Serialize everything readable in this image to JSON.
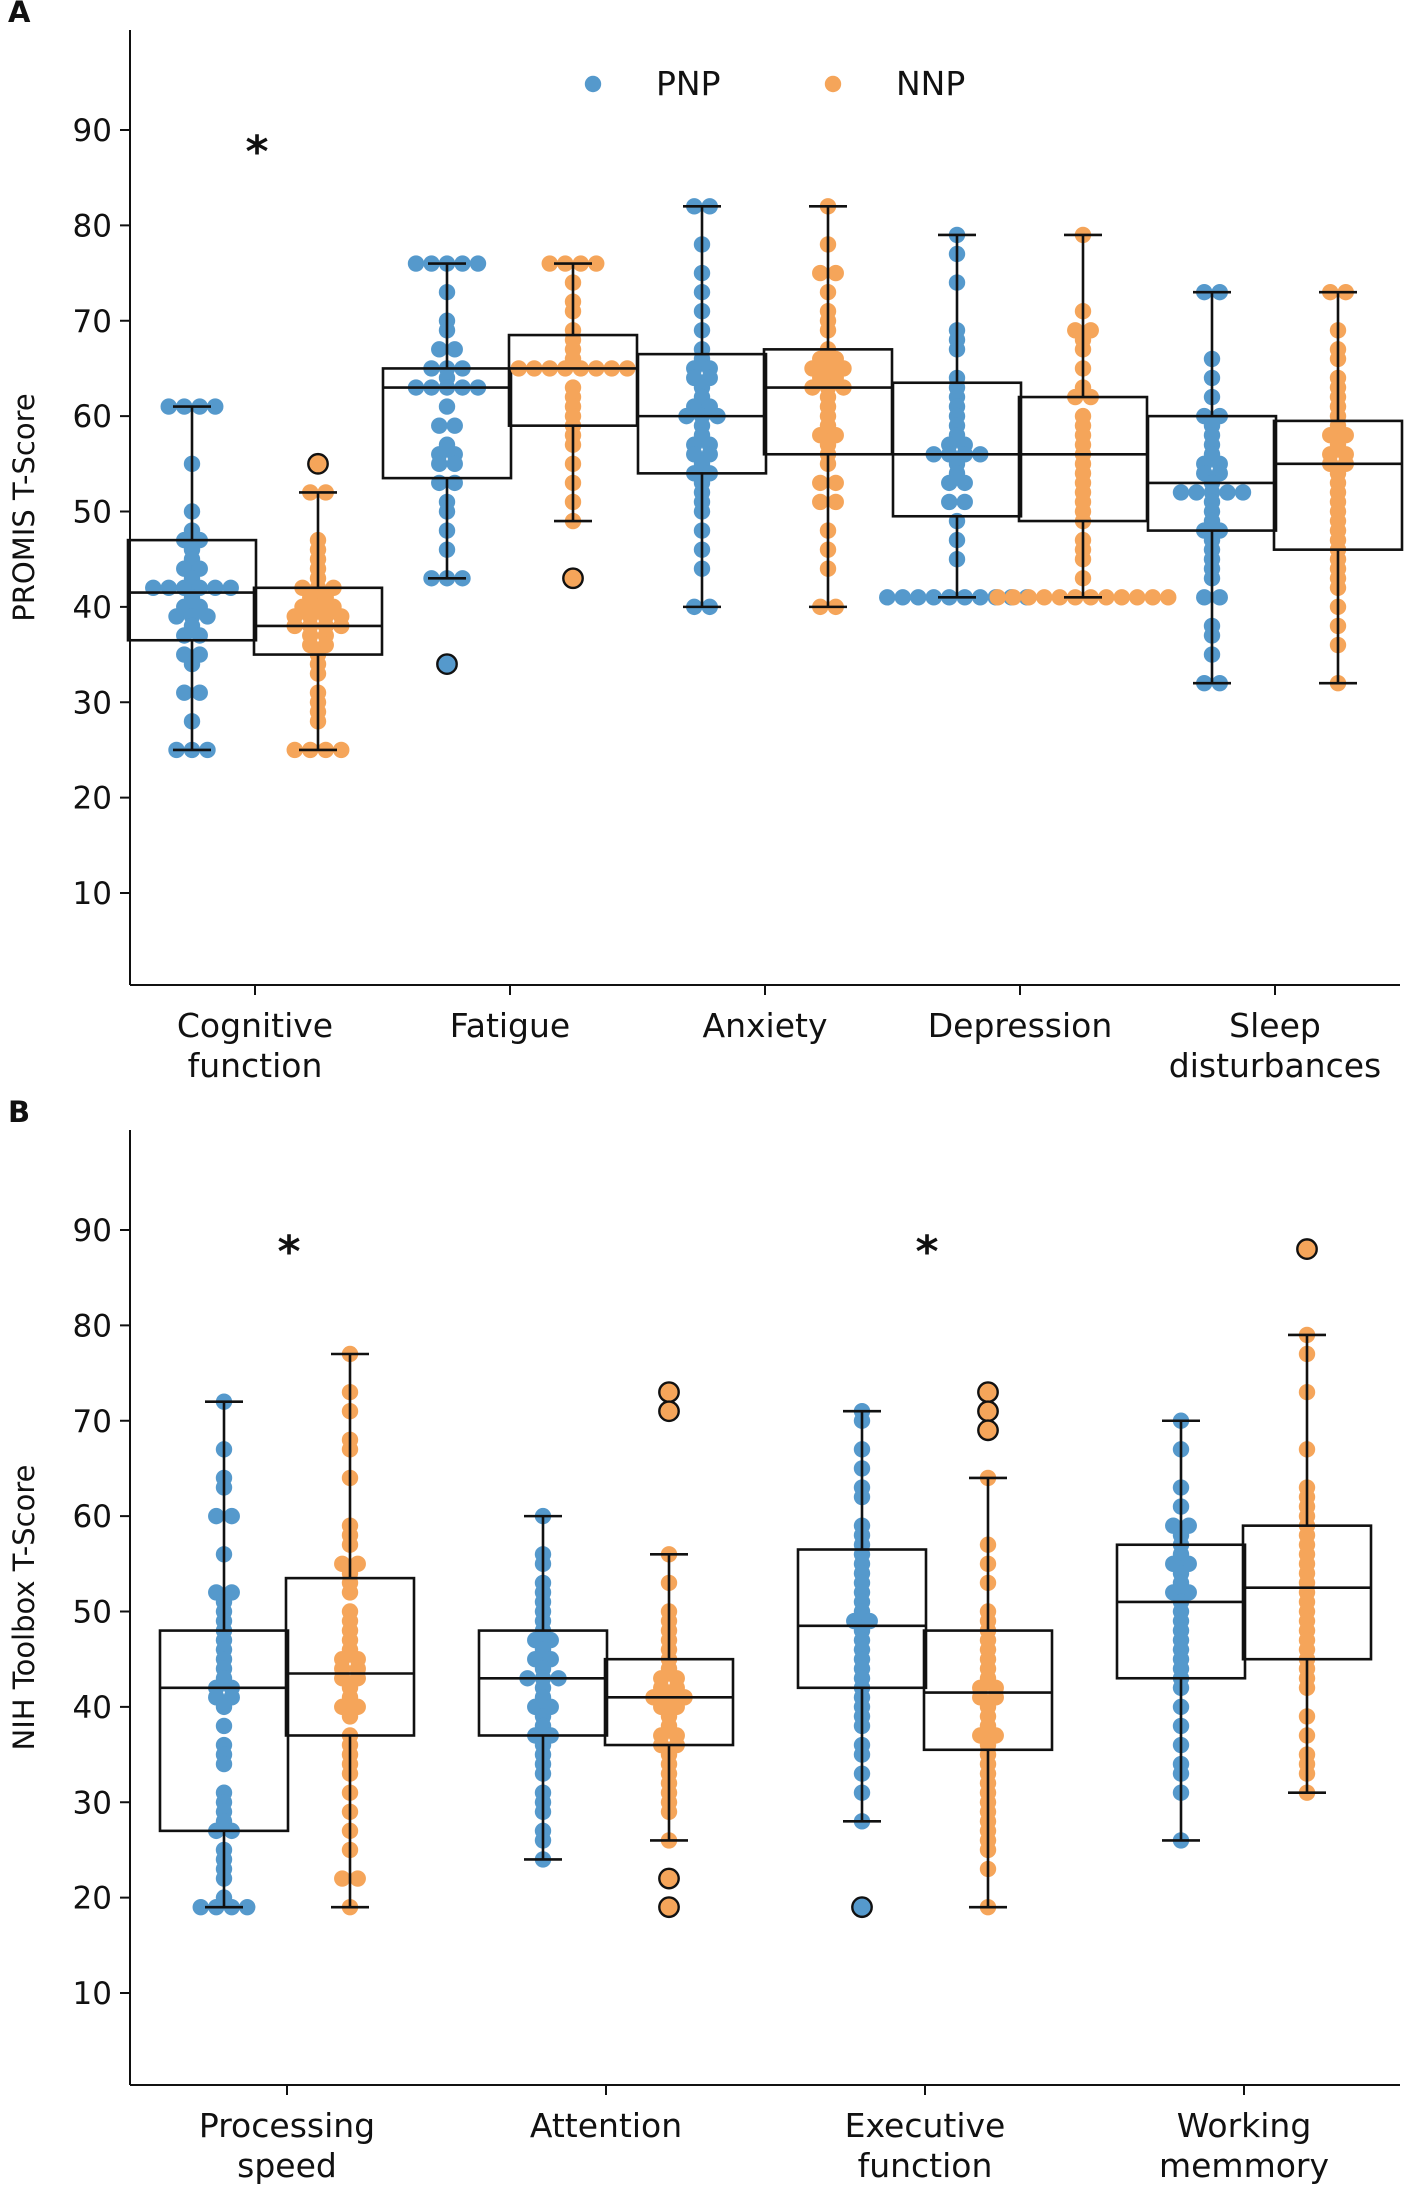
{
  "colors": {
    "PNP": "#5599cc",
    "NNP": "#f5a55a",
    "axis": "#111111"
  },
  "chart_data": [
    {
      "panel": "A",
      "type": "box",
      "ylabel": "PROMIS T-Score",
      "ylim": [
        0,
        100
      ],
      "yticks": [
        10,
        20,
        30,
        40,
        50,
        60,
        70,
        80,
        90
      ],
      "legend": {
        "placement": "top-center",
        "entries": [
          {
            "name": "PNP",
            "color_key": "PNP"
          },
          {
            "name": "NNP",
            "color_key": "NNP"
          }
        ]
      },
      "categories": [
        {
          "label": [
            "Cognitive",
            "function"
          ],
          "sig": "*",
          "groups": {
            "PNP": {
              "q1": 36.5,
              "median": 41.5,
              "q3": 47,
              "whislo": 25,
              "whishi": 61,
              "outliers": [],
              "points": [
                61,
                61,
                61,
                61,
                55,
                50,
                48,
                47,
                47,
                46,
                45,
                44,
                44,
                43,
                42,
                42,
                42,
                42,
                42,
                42,
                41,
                40,
                40,
                39,
                39,
                39,
                38,
                37,
                37,
                35,
                35,
                34,
                31,
                31,
                28,
                25,
                25,
                25
              ]
            },
            "NNP": {
              "q1": 35,
              "median": 38,
              "q3": 42,
              "whislo": 25,
              "whishi": 52,
              "outliers": [
                55
              ],
              "points": [
                52,
                52,
                47,
                46,
                45,
                44,
                43,
                42,
                42,
                42,
                41,
                41,
                40,
                40,
                40,
                39,
                39,
                39,
                39,
                38,
                38,
                38,
                38,
                37,
                37,
                36,
                36,
                35,
                34,
                33,
                31,
                30,
                29,
                28,
                25,
                25,
                25,
                25
              ]
            }
          }
        },
        {
          "label": [
            "Fatigue"
          ],
          "sig": "",
          "groups": {
            "PNP": {
              "q1": 53.5,
              "median": 63,
              "q3": 65,
              "whislo": 43,
              "whishi": 76,
              "outliers": [
                34
              ],
              "points": [
                76,
                76,
                76,
                76,
                76,
                73,
                70,
                69,
                67,
                67,
                65,
                65,
                65,
                64,
                63,
                63,
                63,
                63,
                63,
                61,
                59,
                59,
                57,
                56,
                56,
                55,
                55,
                53,
                53,
                51,
                50,
                48,
                46,
                43,
                43,
                43
              ]
            },
            "NNP": {
              "q1": 59,
              "median": 65,
              "q3": 68.5,
              "whislo": 49,
              "whishi": 76,
              "outliers": [
                43
              ],
              "points": [
                76,
                76,
                76,
                76,
                74,
                72,
                71,
                69,
                68,
                67,
                66,
                65,
                65,
                65,
                65,
                65,
                65,
                65,
                65,
                63,
                62,
                61,
                60,
                59,
                58,
                57,
                55,
                53,
                51,
                49
              ]
            }
          }
        },
        {
          "label": [
            "Anxiety"
          ],
          "sig": "",
          "groups": {
            "PNP": {
              "q1": 54,
              "median": 60,
              "q3": 66.5,
              "whislo": 40,
              "whishi": 82,
              "outliers": [],
              "points": [
                82,
                82,
                78,
                75,
                73,
                71,
                69,
                67,
                66,
                65,
                65,
                64,
                64,
                63,
                62,
                61,
                61,
                60,
                60,
                60,
                59,
                58,
                57,
                57,
                56,
                56,
                55,
                54,
                54,
                53,
                52,
                51,
                50,
                48,
                46,
                44,
                40,
                40
              ]
            },
            "NNP": {
              "q1": 56,
              "median": 63,
              "q3": 67,
              "whislo": 40,
              "whishi": 82,
              "outliers": [],
              "points": [
                82,
                78,
                75,
                75,
                73,
                71,
                70,
                69,
                67,
                66,
                66,
                65,
                65,
                65,
                64,
                64,
                63,
                63,
                63,
                62,
                61,
                60,
                59,
                58,
                58,
                57,
                56,
                55,
                53,
                53,
                51,
                51,
                48,
                46,
                44,
                40,
                40
              ]
            }
          }
        },
        {
          "label": [
            "Depression"
          ],
          "sig": "",
          "groups": {
            "PNP": {
              "q1": 49.5,
              "median": 56,
              "q3": 63.5,
              "whislo": 41,
              "whishi": 79,
              "outliers": [],
              "points": [
                79,
                77,
                74,
                69,
                68,
                67,
                64,
                63,
                62,
                61,
                60,
                59,
                58,
                57,
                57,
                56,
                56,
                56,
                56,
                55,
                54,
                53,
                53,
                51,
                51,
                49,
                47,
                45,
                41,
                41,
                41,
                41,
                41,
                41,
                41,
                41,
                41,
                41
              ]
            },
            "NNP": {
              "q1": 49,
              "median": 56,
              "q3": 62,
              "whislo": 41,
              "whishi": 79,
              "outliers": [],
              "points": [
                79,
                71,
                69,
                69,
                68,
                67,
                65,
                63,
                62,
                62,
                60,
                59,
                58,
                57,
                56,
                55,
                54,
                53,
                52,
                51,
                50,
                49,
                47,
                46,
                45,
                43,
                41,
                41,
                41,
                41,
                41,
                41,
                41,
                41,
                41,
                41,
                41,
                41
              ]
            }
          }
        },
        {
          "label": [
            "Sleep",
            "disturbances"
          ],
          "sig": "",
          "groups": {
            "PNP": {
              "q1": 48,
              "median": 53,
              "q3": 60,
              "whislo": 32,
              "whishi": 73,
              "outliers": [],
              "points": [
                73,
                73,
                66,
                64,
                62,
                60,
                60,
                59,
                58,
                57,
                56,
                55,
                55,
                54,
                54,
                53,
                52,
                52,
                52,
                52,
                52,
                51,
                50,
                49,
                48,
                48,
                47,
                46,
                45,
                44,
                43,
                41,
                41,
                38,
                37,
                35,
                32,
                32
              ]
            },
            "NNP": {
              "q1": 46,
              "median": 55,
              "q3": 59.5,
              "whislo": 32,
              "whishi": 73,
              "outliers": [],
              "points": [
                73,
                73,
                69,
                67,
                66,
                64,
                63,
                62,
                61,
                60,
                59,
                58,
                58,
                57,
                56,
                56,
                55,
                55,
                54,
                53,
                52,
                51,
                50,
                49,
                48,
                47,
                46,
                45,
                44,
                43,
                42,
                40,
                38,
                36,
                32
              ]
            }
          }
        }
      ]
    },
    {
      "panel": "B",
      "type": "box",
      "ylabel": "NIH Toolbox T-Score",
      "ylim": [
        0,
        100
      ],
      "yticks": [
        10,
        20,
        30,
        40,
        50,
        60,
        70,
        80,
        90
      ],
      "categories": [
        {
          "label": [
            "Processing",
            "speed"
          ],
          "sig": "*",
          "groups": {
            "PNP": {
              "q1": 27,
              "median": 42,
              "q3": 48,
              "whislo": 19,
              "whishi": 72,
              "outliers": [],
              "points": [
                72,
                67,
                64,
                63,
                60,
                60,
                56,
                52,
                52,
                51,
                50,
                49,
                48,
                47,
                46,
                45,
                44,
                43,
                42,
                42,
                41,
                41,
                40,
                38,
                36,
                35,
                34,
                31,
                30,
                29,
                28,
                27,
                27,
                25,
                24,
                23,
                22,
                20,
                19,
                19,
                19,
                19
              ]
            },
            "NNP": {
              "q1": 37,
              "median": 43.5,
              "q3": 53.5,
              "whislo": 19,
              "whishi": 77,
              "outliers": [],
              "points": [
                77,
                73,
                71,
                68,
                67,
                64,
                59,
                58,
                57,
                55,
                55,
                54,
                53,
                52,
                50,
                49,
                48,
                47,
                46,
                45,
                45,
                44,
                44,
                43,
                43,
                42,
                41,
                40,
                40,
                39,
                37,
                36,
                35,
                34,
                33,
                31,
                29,
                27,
                25,
                22,
                22,
                19
              ]
            }
          }
        },
        {
          "label": [
            "Attention"
          ],
          "sig": "",
          "groups": {
            "PNP": {
              "q1": 37,
              "median": 43,
              "q3": 48,
              "whislo": 24,
              "whishi": 60,
              "outliers": [],
              "points": [
                60,
                56,
                55,
                53,
                52,
                51,
                50,
                49,
                48,
                47,
                47,
                46,
                45,
                45,
                44,
                43,
                43,
                43,
                42,
                41,
                40,
                40,
                39,
                38,
                37,
                37,
                36,
                35,
                34,
                33,
                31,
                30,
                29,
                27,
                26,
                24
              ]
            },
            "NNP": {
              "q1": 36,
              "median": 41,
              "q3": 45,
              "whislo": 26,
              "whishi": 56,
              "outliers": [
                73,
                71,
                22,
                19
              ],
              "points": [
                56,
                53,
                50,
                49,
                48,
                47,
                46,
                45,
                44,
                43,
                43,
                42,
                42,
                41,
                41,
                41,
                40,
                40,
                39,
                38,
                37,
                37,
                36,
                36,
                35,
                34,
                33,
                32,
                31,
                30,
                29,
                26
              ]
            }
          }
        },
        {
          "label": [
            "Executive",
            "function"
          ],
          "sig": "*",
          "groups": {
            "PNP": {
              "q1": 42,
              "median": 48.5,
              "q3": 56.5,
              "whislo": 28,
              "whishi": 71,
              "outliers": [
                19
              ],
              "points": [
                71,
                70,
                67,
                65,
                63,
                62,
                59,
                58,
                57,
                56,
                55,
                54,
                53,
                52,
                51,
                50,
                49,
                49,
                48,
                47,
                46,
                45,
                44,
                43,
                42,
                41,
                40,
                39,
                38,
                36,
                35,
                33,
                31,
                28
              ]
            },
            "NNP": {
              "q1": 35.5,
              "median": 41.5,
              "q3": 48,
              "whislo": 19,
              "whishi": 64,
              "outliers": [
                73,
                71,
                69
              ],
              "points": [
                64,
                57,
                55,
                53,
                50,
                49,
                48,
                47,
                46,
                45,
                44,
                43,
                42,
                42,
                41,
                41,
                40,
                39,
                38,
                37,
                37,
                36,
                35,
                34,
                33,
                32,
                31,
                30,
                29,
                28,
                27,
                26,
                25,
                23,
                19
              ]
            }
          }
        },
        {
          "label": [
            "Working",
            "memmory"
          ],
          "sig": "",
          "groups": {
            "PNP": {
              "q1": 43,
              "median": 51,
              "q3": 57,
              "whislo": 26,
              "whishi": 70,
              "outliers": [],
              "points": [
                70,
                67,
                63,
                61,
                59,
                59,
                58,
                57,
                56,
                55,
                55,
                54,
                53,
                52,
                52,
                51,
                50,
                49,
                48,
                47,
                46,
                45,
                44,
                43,
                42,
                40,
                38,
                36,
                34,
                33,
                31,
                26
              ]
            },
            "NNP": {
              "q1": 45,
              "median": 52.5,
              "q3": 59,
              "whislo": 31,
              "whishi": 79,
              "outliers": [
                88
              ],
              "points": [
                79,
                77,
                73,
                67,
                63,
                62,
                61,
                60,
                59,
                58,
                57,
                56,
                55,
                54,
                53,
                52,
                51,
                50,
                49,
                48,
                47,
                46,
                45,
                44,
                43,
                42,
                39,
                37,
                35,
                34,
                33,
                31
              ]
            }
          }
        }
      ]
    }
  ]
}
